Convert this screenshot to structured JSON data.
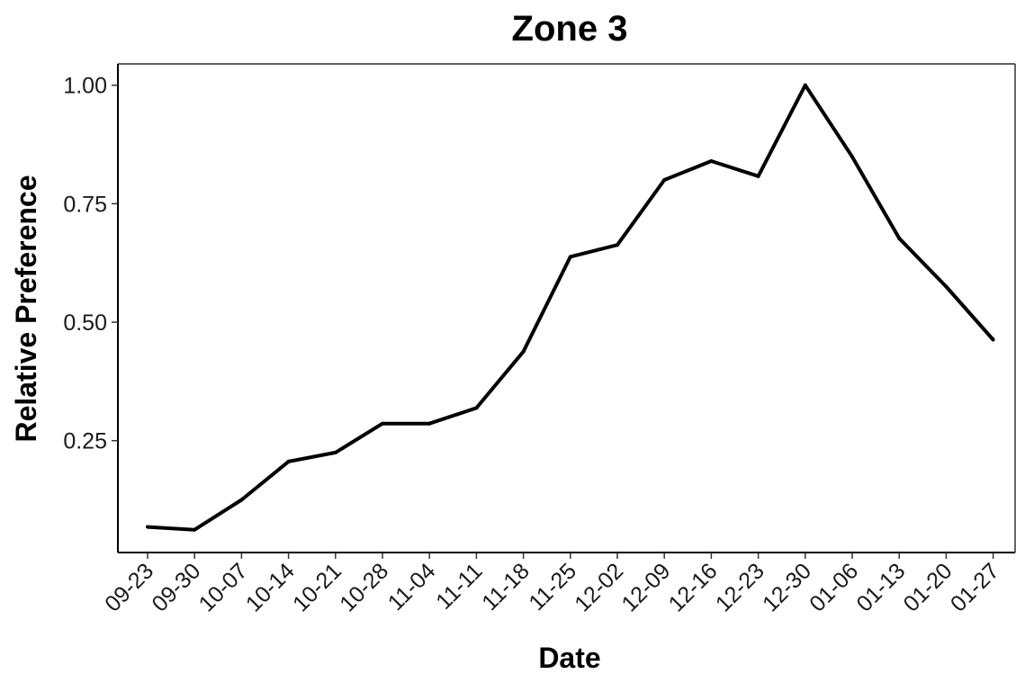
{
  "chart_data": {
    "type": "line",
    "title": "Zone 3",
    "xlabel": "Date",
    "ylabel": "Relative Preference",
    "categories": [
      "09-23",
      "09-30",
      "10-07",
      "10-14",
      "10-21",
      "10-28",
      "11-04",
      "11-11",
      "11-18",
      "11-25",
      "12-02",
      "12-09",
      "12-16",
      "12-23",
      "12-30",
      "01-06",
      "01-13",
      "01-20",
      "01-27"
    ],
    "series": [
      {
        "values": [
          0.068,
          0.062,
          0.125,
          0.206,
          0.225,
          0.286,
          0.286,
          0.319,
          0.438,
          0.638,
          0.663,
          0.8,
          0.84,
          0.808,
          1.0,
          0.849,
          0.677,
          0.575,
          0.463
        ],
        "color": "#000000"
      }
    ],
    "yticks": [
      0.25,
      0.5,
      0.75,
      1.0
    ],
    "ytick_labels": [
      "0.25",
      "0.50",
      "0.75",
      "1.00"
    ],
    "ylim": [
      0.014,
      1.045
    ],
    "grid": false,
    "legend": "none"
  }
}
